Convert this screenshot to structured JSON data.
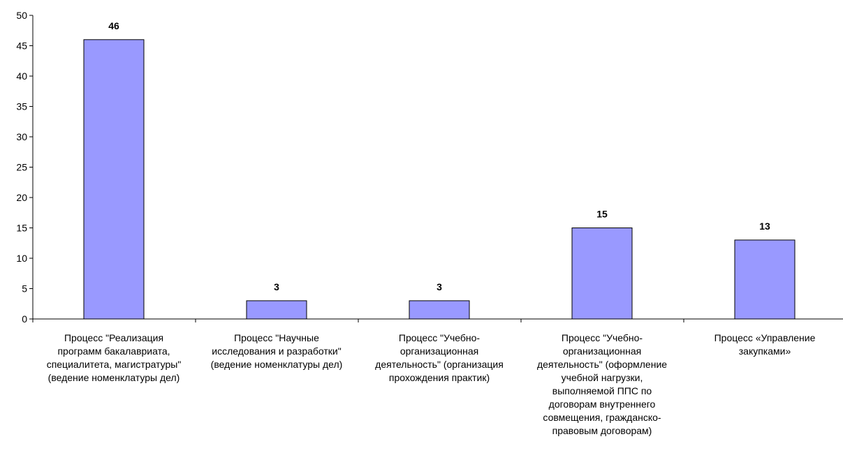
{
  "chart_data": {
    "type": "bar",
    "title": "",
    "xlabel": "",
    "ylabel": "",
    "ylim": [
      0,
      50
    ],
    "yticks": [
      0,
      5,
      10,
      15,
      20,
      25,
      30,
      35,
      40,
      45,
      50
    ],
    "grid": false,
    "legend": "none",
    "colors": {
      "bar_fill": "#9999ff",
      "bar_stroke": "#000000",
      "axis": "#000000",
      "text": "#000000"
    },
    "categories": [
      "Процесс \"Реализация программ бакалавриата, специалитета, магистратуры\" (ведение номенклатуры дел)",
      "Процесс \"Научные исследования и разработки\" (ведение номенклатуры дел)",
      "Процесс \"Учебно-организационная деятельность\" (организация прохождения практик)",
      "Процесс \"Учебно-организационная деятельность\" (оформление учебной нагрузки, выполняемой ППС по договорам внутреннего совмещения, гражданско-правовым договорам)",
      "Процесс «Управление закупками»"
    ],
    "values": [
      46,
      3,
      3,
      15,
      13
    ],
    "data_labels": [
      "46",
      "3",
      "3",
      "15",
      "13"
    ]
  }
}
